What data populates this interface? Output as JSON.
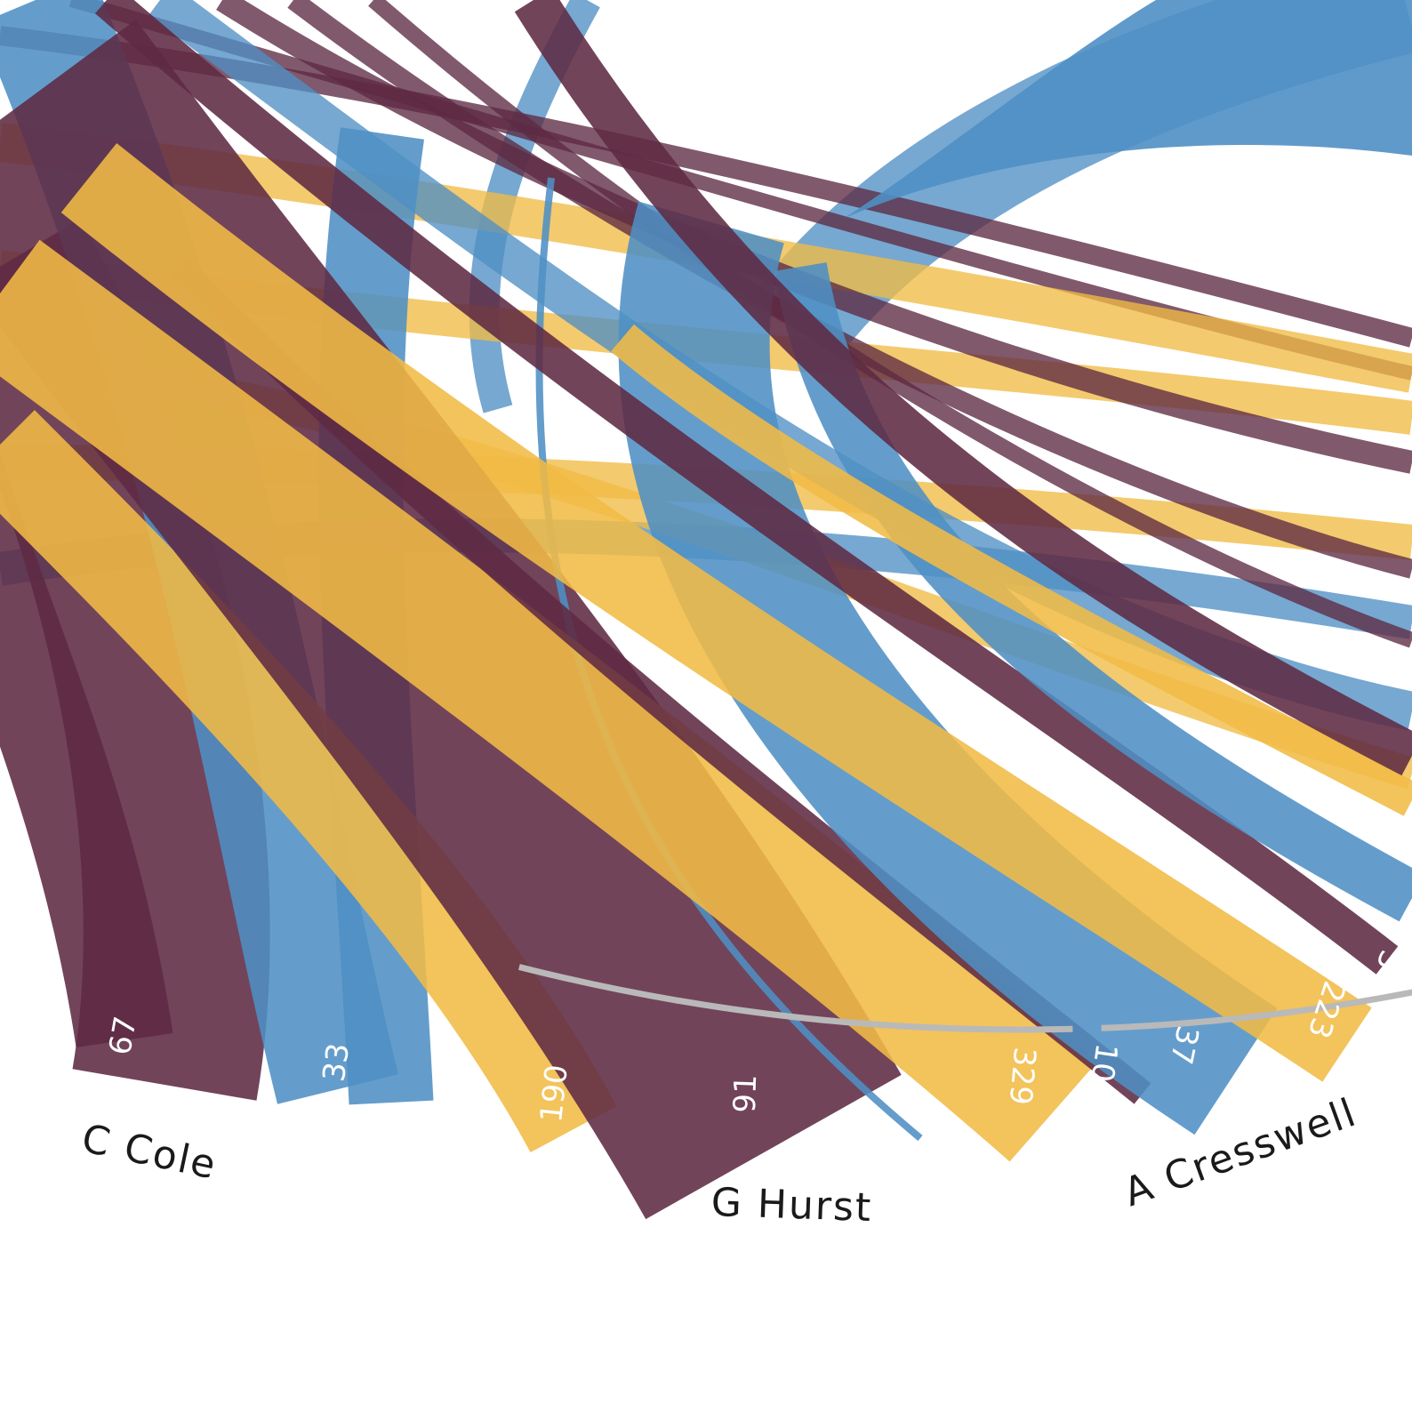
{
  "chart_data": {
    "type": "chord",
    "colors": {
      "claret": "#5e2a43",
      "blue": "#4f8fc4",
      "gold": "#f1bb45"
    },
    "groups": [
      {
        "name": "C Cole"
      },
      {
        "name": "G Hurst"
      },
      {
        "name": "A Cresswell"
      }
    ],
    "segments": [
      {
        "player": "C Cole",
        "color": "claret",
        "value": "67"
      },
      {
        "player": "C Cole",
        "color": "blue",
        "value": "33"
      },
      {
        "player": "G Hurst",
        "color": "gold",
        "value": "190"
      },
      {
        "player": "G Hurst",
        "color": "claret",
        "value": "91"
      },
      {
        "player": "G Hurst",
        "color": "blue",
        "value": ""
      },
      {
        "player": "A Cresswell",
        "color": "gold",
        "value": "329"
      },
      {
        "player": "A Cresswell",
        "color": "claret",
        "value": "10"
      },
      {
        "player": "A Cresswell",
        "color": "blue",
        "value": "37"
      },
      {
        "player": "A Cresswell",
        "color": "gold",
        "value": "223"
      },
      {
        "player": "A Cresswell",
        "color": "claret",
        "value": "3"
      }
    ]
  }
}
